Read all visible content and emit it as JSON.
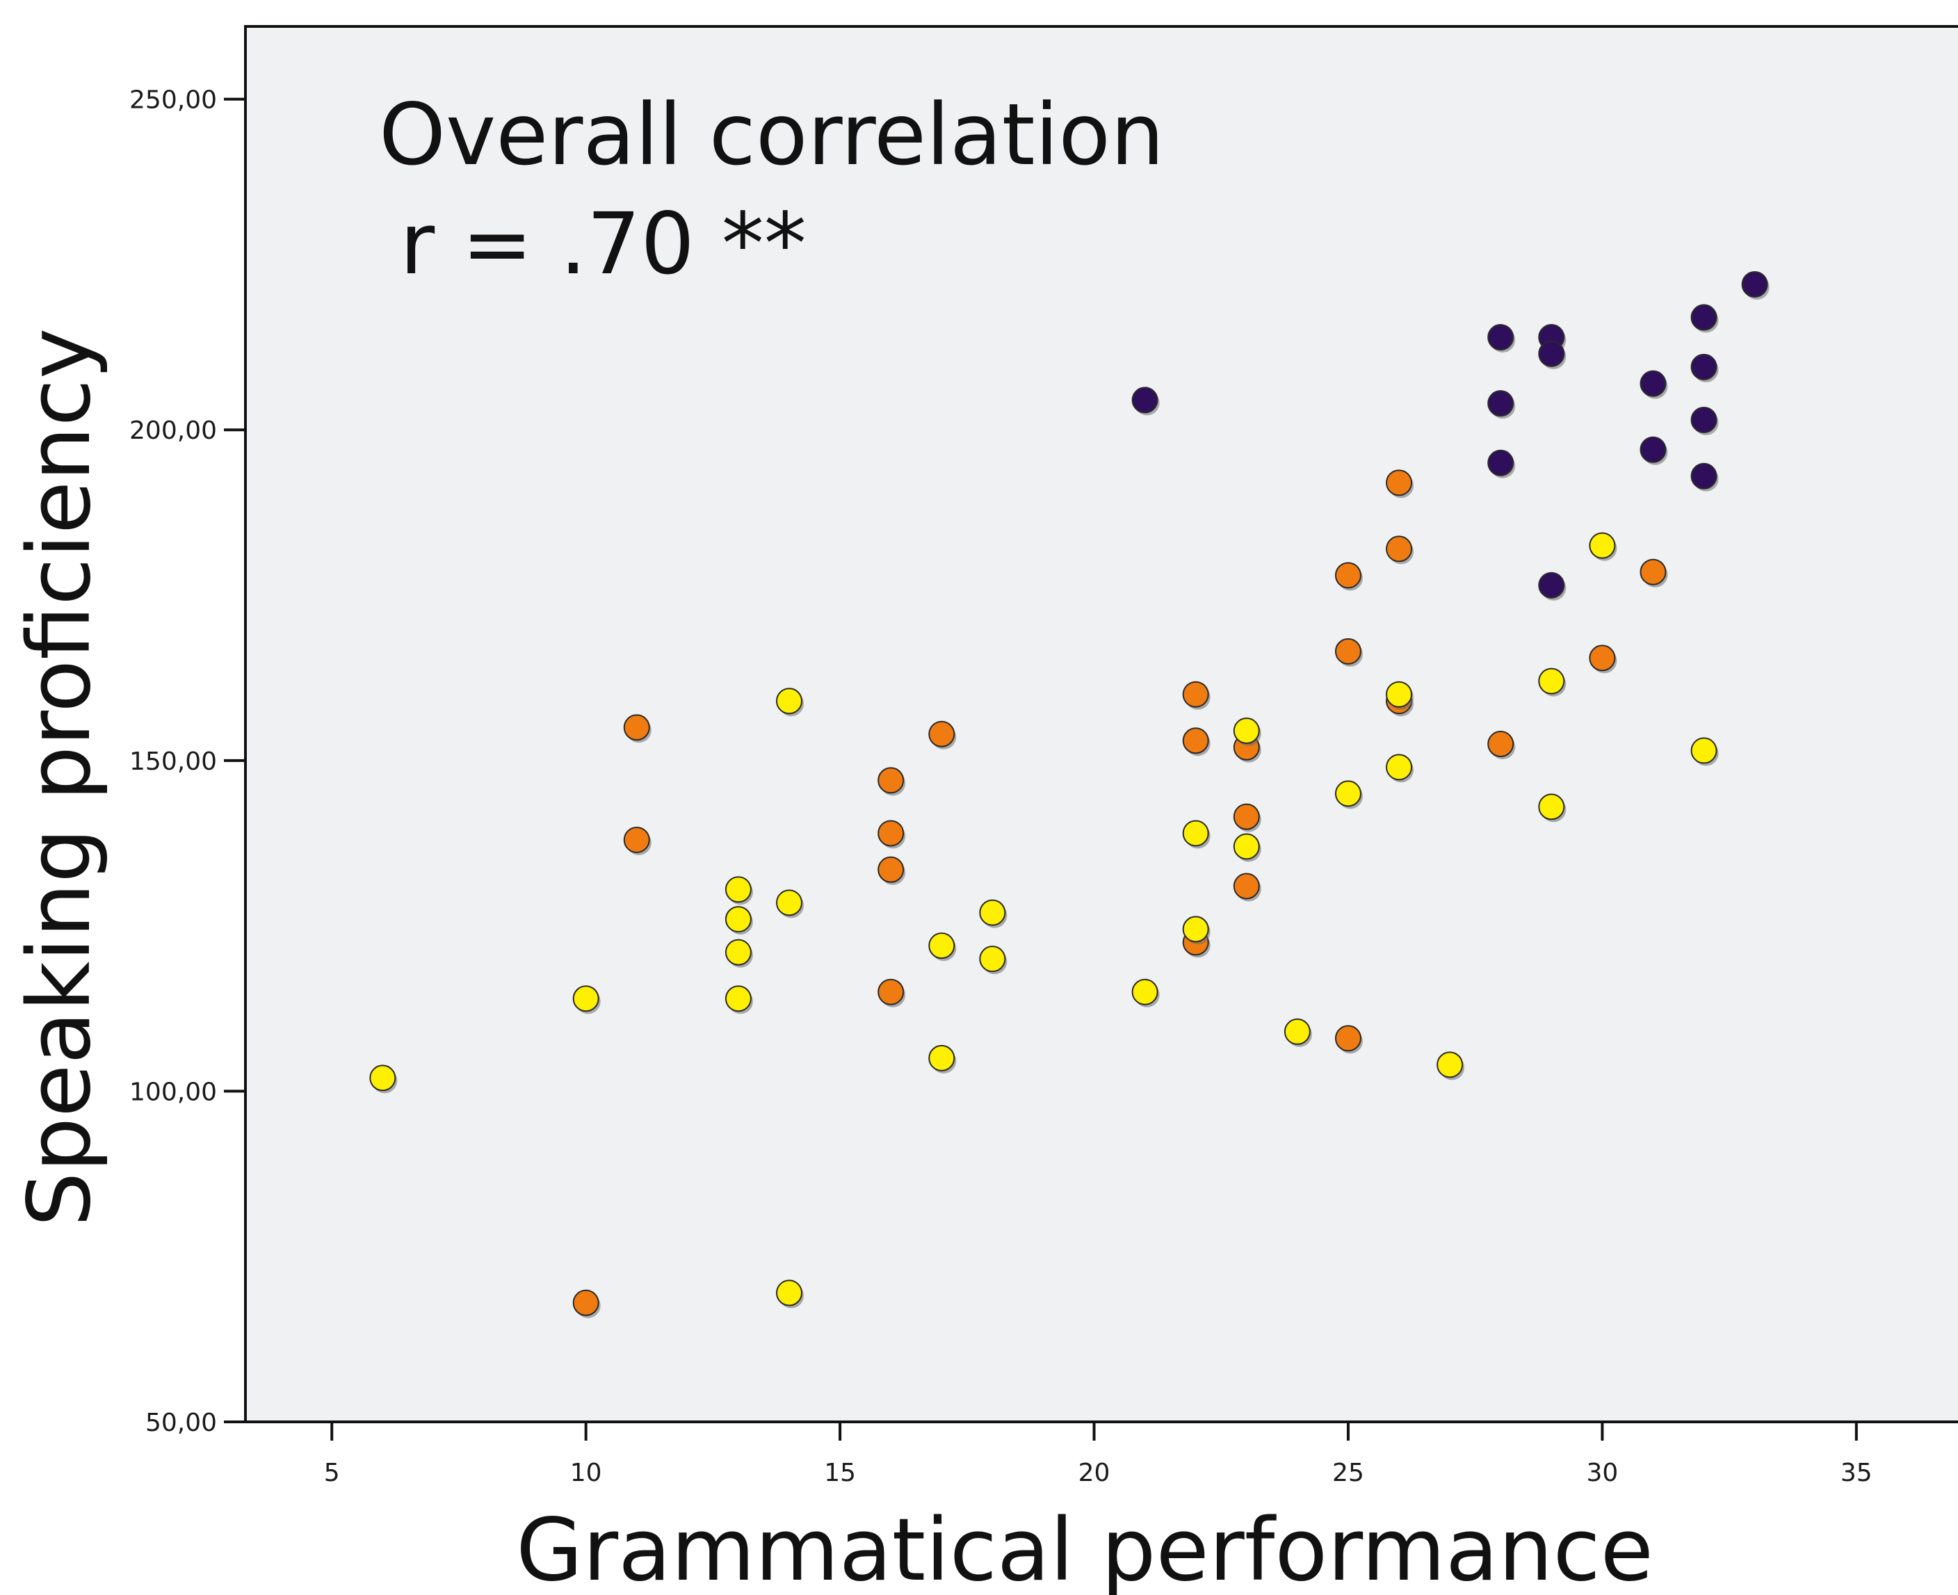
{
  "chart_data": {
    "type": "scatter",
    "title": "",
    "xlabel": "Grammatical performance",
    "ylabel": "Speaking proficiency",
    "xlim": [
      3.3,
      37
    ],
    "ylim": [
      50,
      261
    ],
    "xticks": [
      5,
      10,
      15,
      20,
      25,
      30,
      35
    ],
    "yticks": [
      50,
      100,
      150,
      200,
      250
    ],
    "xtick_labels": [
      "5",
      "10",
      "15",
      "20",
      "25",
      "30",
      "35"
    ],
    "ytick_labels": [
      "50,00",
      "100,00",
      "150,00",
      "200,00",
      "250,00"
    ],
    "grid": false,
    "legend": "none",
    "plot_background": "#f0f1f3",
    "annotations": [
      "Overall correlation",
      "r = .70 **"
    ],
    "series": [
      {
        "color": "#2f0f5c",
        "points": [
          [
            21,
            204.5
          ],
          [
            28,
            214
          ],
          [
            28,
            204
          ],
          [
            28,
            195
          ],
          [
            29,
            214
          ],
          [
            29,
            211.5
          ],
          [
            29,
            176.5
          ],
          [
            31,
            207
          ],
          [
            31,
            197
          ],
          [
            32,
            217
          ],
          [
            32,
            209.5
          ],
          [
            32,
            201.5
          ],
          [
            32,
            193
          ],
          [
            33,
            222
          ]
        ]
      },
      {
        "color": "#f07b10",
        "points": [
          [
            10,
            68
          ],
          [
            11,
            155
          ],
          [
            11,
            138
          ],
          [
            16,
            147
          ],
          [
            16,
            139
          ],
          [
            16,
            133.5
          ],
          [
            16,
            115
          ],
          [
            17,
            154
          ],
          [
            22,
            160
          ],
          [
            22,
            153
          ],
          [
            22,
            122.5
          ],
          [
            23,
            152
          ],
          [
            23,
            141.5
          ],
          [
            23,
            131
          ],
          [
            25,
            178
          ],
          [
            25,
            166.5
          ],
          [
            25,
            108
          ],
          [
            26,
            192
          ],
          [
            26,
            182
          ],
          [
            26,
            159
          ],
          [
            28,
            152.5
          ],
          [
            30,
            165.5
          ],
          [
            31,
            178.5
          ]
        ]
      },
      {
        "color": "#ffef00",
        "points": [
          [
            6,
            102
          ],
          [
            10,
            114
          ],
          [
            13,
            130.5
          ],
          [
            13,
            126
          ],
          [
            13,
            121
          ],
          [
            13,
            114
          ],
          [
            14,
            159
          ],
          [
            14,
            128.5
          ],
          [
            14,
            69.5
          ],
          [
            17,
            122
          ],
          [
            17,
            105
          ],
          [
            18,
            127
          ],
          [
            18,
            120
          ],
          [
            21,
            115
          ],
          [
            22,
            139
          ],
          [
            22,
            124.5
          ],
          [
            23,
            154.5
          ],
          [
            23,
            137
          ],
          [
            24,
            109
          ],
          [
            25,
            145
          ],
          [
            26,
            160
          ],
          [
            26,
            149
          ],
          [
            27,
            104
          ],
          [
            29,
            162
          ],
          [
            29,
            143
          ],
          [
            30,
            182.5
          ],
          [
            32,
            151.5
          ]
        ]
      }
    ]
  }
}
